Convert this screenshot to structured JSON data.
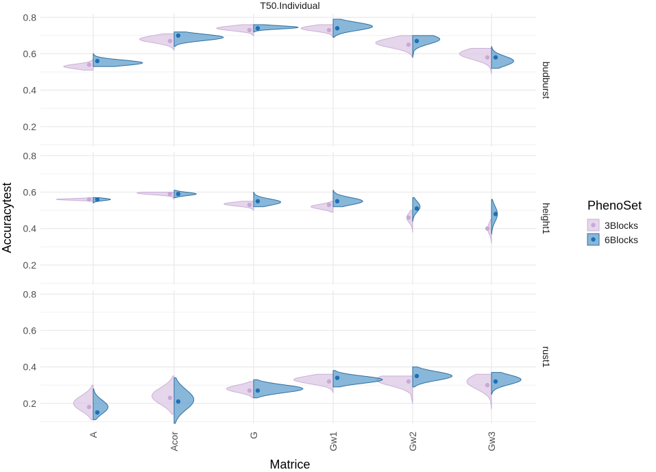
{
  "chart_data": {
    "type": "split-violin",
    "title": "T50.Individual",
    "xlabel": "Matrice",
    "ylabel": "Accuracytest",
    "categories": [
      "A",
      "Acor",
      "G",
      "Gw1",
      "Gw2",
      "Gw3"
    ],
    "yticks": [
      "0.2",
      "0.4",
      "0.6",
      "0.8"
    ],
    "ylim": [
      0.09,
      0.82
    ],
    "legend": {
      "title": "PhenoSet",
      "entries": [
        {
          "name": "3Blocks",
          "fill": "#dcc8e4",
          "stroke": "#c9b0d6",
          "point": "#c8a9d6"
        },
        {
          "name": "6Blocks",
          "fill": "#6aa5cf",
          "stroke": "#2f6f9f",
          "point": "#1f6fb5"
        }
      ]
    },
    "panels": [
      {
        "name": "budburst",
        "series": [
          {
            "name": "3Blocks",
            "violins": [
              {
                "cat": "A",
                "mean": 0.54,
                "min": 0.51,
                "max": 0.57,
                "width": 0.6,
                "mode": 0.53
              },
              {
                "cat": "Acor",
                "mean": 0.67,
                "min": 0.62,
                "max": 0.71,
                "width": 0.7,
                "mode": 0.68
              },
              {
                "cat": "G",
                "mean": 0.73,
                "min": 0.7,
                "max": 0.76,
                "width": 0.75,
                "mode": 0.74
              },
              {
                "cat": "Gw1",
                "mean": 0.73,
                "min": 0.69,
                "max": 0.76,
                "width": 0.65,
                "mode": 0.74
              },
              {
                "cat": "Gw2",
                "mean": 0.65,
                "min": 0.58,
                "max": 0.7,
                "width": 0.75,
                "mode": 0.66
              },
              {
                "cat": "Gw3",
                "mean": 0.58,
                "min": 0.49,
                "max": 0.63,
                "width": 0.65,
                "mode": 0.6
              }
            ]
          },
          {
            "name": "6Blocks",
            "violins": [
              {
                "cat": "A",
                "mean": 0.56,
                "min": 0.53,
                "max": 0.6,
                "width": 1.0,
                "mode": 0.55
              },
              {
                "cat": "Acor",
                "mean": 0.7,
                "min": 0.64,
                "max": 0.72,
                "width": 1.0,
                "mode": 0.69
              },
              {
                "cat": "G",
                "mean": 0.74,
                "min": 0.72,
                "max": 0.76,
                "width": 0.9,
                "mode": 0.745
              },
              {
                "cat": "Gw1",
                "mean": 0.74,
                "min": 0.69,
                "max": 0.79,
                "width": 0.8,
                "mode": 0.75
              },
              {
                "cat": "Gw2",
                "mean": 0.67,
                "min": 0.58,
                "max": 0.7,
                "width": 0.55,
                "mode": 0.68
              },
              {
                "cat": "Gw3",
                "mean": 0.58,
                "min": 0.52,
                "max": 0.64,
                "width": 0.45,
                "mode": 0.56
              }
            ]
          }
        ]
      },
      {
        "name": "height1",
        "series": [
          {
            "name": "3Blocks",
            "violins": [
              {
                "cat": "A",
                "mean": 0.56,
                "min": 0.55,
                "max": 0.57,
                "width": 0.75,
                "mode": 0.56
              },
              {
                "cat": "Acor",
                "mean": 0.59,
                "min": 0.56,
                "max": 0.6,
                "width": 0.75,
                "mode": 0.595
              },
              {
                "cat": "G",
                "mean": 0.53,
                "min": 0.5,
                "max": 0.55,
                "width": 0.6,
                "mode": 0.535
              },
              {
                "cat": "Gw1",
                "mean": 0.53,
                "min": 0.49,
                "max": 0.55,
                "width": 0.45,
                "mode": 0.52
              },
              {
                "cat": "Gw2",
                "mean": 0.46,
                "min": 0.38,
                "max": 0.5,
                "width": 0.12,
                "mode": 0.46
              },
              {
                "cat": "Gw3",
                "mean": 0.4,
                "min": 0.32,
                "max": 0.45,
                "width": 0.08,
                "mode": 0.4
              }
            ]
          },
          {
            "name": "6Blocks",
            "violins": [
              {
                "cat": "A",
                "mean": 0.56,
                "min": 0.54,
                "max": 0.57,
                "width": 0.35,
                "mode": 0.56
              },
              {
                "cat": "Acor",
                "mean": 0.59,
                "min": 0.57,
                "max": 0.61,
                "width": 0.45,
                "mode": 0.59
              },
              {
                "cat": "G",
                "mean": 0.55,
                "min": 0.52,
                "max": 0.6,
                "width": 0.55,
                "mode": 0.545
              },
              {
                "cat": "Gw1",
                "mean": 0.55,
                "min": 0.52,
                "max": 0.61,
                "width": 0.6,
                "mode": 0.55
              },
              {
                "cat": "Gw2",
                "mean": 0.51,
                "min": 0.44,
                "max": 0.57,
                "width": 0.15,
                "mode": 0.52
              },
              {
                "cat": "Gw3",
                "mean": 0.48,
                "min": 0.37,
                "max": 0.56,
                "width": 0.12,
                "mode": 0.48
              }
            ]
          }
        ]
      },
      {
        "name": "rust1",
        "series": [
          {
            "name": "3Blocks",
            "violins": [
              {
                "cat": "A",
                "mean": 0.18,
                "min": 0.11,
                "max": 0.3,
                "width": 0.4,
                "mode": 0.2
              },
              {
                "cat": "Acor",
                "mean": 0.23,
                "min": 0.14,
                "max": 0.35,
                "width": 0.45,
                "mode": 0.24
              },
              {
                "cat": "G",
                "mean": 0.27,
                "min": 0.23,
                "max": 0.32,
                "width": 0.55,
                "mode": 0.28
              },
              {
                "cat": "Gw1",
                "mean": 0.32,
                "min": 0.26,
                "max": 0.36,
                "width": 0.8,
                "mode": 0.33
              },
              {
                "cat": "Gw2",
                "mean": 0.32,
                "min": 0.2,
                "max": 0.35,
                "width": 0.75,
                "mode": 0.33
              },
              {
                "cat": "Gw3",
                "mean": 0.3,
                "min": 0.17,
                "max": 0.36,
                "width": 0.5,
                "mode": 0.32
              }
            ]
          },
          {
            "name": "6Blocks",
            "violins": [
              {
                "cat": "A",
                "mean": 0.15,
                "min": 0.11,
                "max": 0.28,
                "width": 0.3,
                "mode": 0.18
              },
              {
                "cat": "Acor",
                "mean": 0.21,
                "min": 0.09,
                "max": 0.34,
                "width": 0.4,
                "mode": 0.22
              },
              {
                "cat": "G",
                "mean": 0.27,
                "min": 0.23,
                "max": 0.33,
                "width": 1.0,
                "mode": 0.28
              },
              {
                "cat": "Gw1",
                "mean": 0.34,
                "min": 0.29,
                "max": 0.38,
                "width": 1.0,
                "mode": 0.33
              },
              {
                "cat": "Gw2",
                "mean": 0.35,
                "min": 0.29,
                "max": 0.4,
                "width": 0.8,
                "mode": 0.35
              },
              {
                "cat": "Gw3",
                "mean": 0.32,
                "min": 0.25,
                "max": 0.37,
                "width": 0.6,
                "mode": 0.33
              }
            ]
          }
        ]
      }
    ]
  }
}
